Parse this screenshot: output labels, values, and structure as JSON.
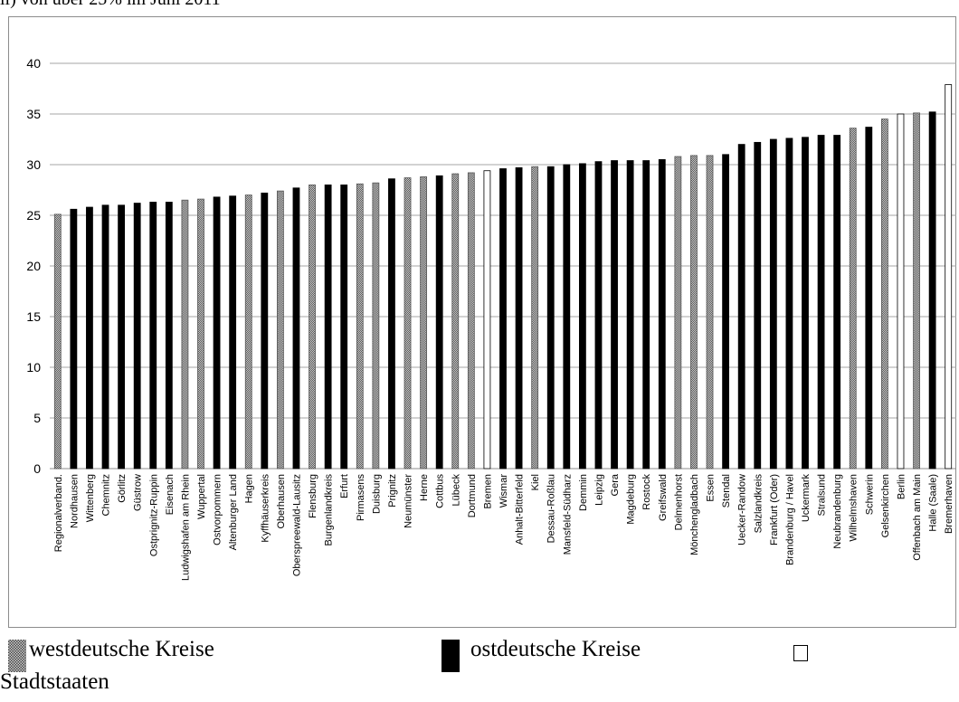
{
  "caption": "ll) von über 25% im Juni 2011",
  "legend": [
    {
      "key": "west",
      "label": "westdeutsche Kreise"
    },
    {
      "key": "ost",
      "label": "ostdeutsche Kreise"
    },
    {
      "key": "stadt",
      "label": "Stadtstaaten"
    }
  ],
  "colors": {
    "west": "#8a8a8a",
    "ost": "#000000",
    "stadt": "#ffffff",
    "grid": "#a6a6a6",
    "frame": "#8c8c8c"
  },
  "chart_data": {
    "type": "bar",
    "ylim": [
      0,
      40
    ],
    "yticks": [
      0,
      5,
      10,
      15,
      20,
      25,
      30,
      35,
      40
    ],
    "grid": true,
    "categories": [
      "Regionalverband.",
      "Nordhausen",
      "Wittenberg",
      "Chemnitz",
      "Görlitz",
      "Güstrow",
      "Ostprignitz-Ruppin",
      "Eisenach",
      "Ludwigshafen am Rhein",
      "Wuppertal",
      "Ostvorpommern",
      "Altenburger Land",
      "Hagen",
      "Kyffhäuserkreis",
      "Oberhausen",
      "Oberspreewald-Lausitz",
      "Flensburg",
      "Burgenlandkreis",
      "Erfurt",
      "Pirmasens",
      "Duisburg",
      "Prignitz",
      "Neumünster",
      "Herne",
      "Cottbus",
      "Lübeck",
      "Dortmund",
      "Bremen",
      "Wismar",
      "Anhalt-Bitterfeld",
      "Kiel",
      "Dessau-Roßlau",
      "Mansfeld-Südharz",
      "Demmin",
      "Leipzig",
      "Gera",
      "Magdeburg",
      "Rostock",
      "Greifswald",
      "Delmenhorst",
      "Mönchengladbach",
      "Essen",
      "Stendal",
      "Uecker-Randow",
      "Salzlandkreis",
      "Frankfurt (Oder)",
      "Brandenburg / Havel",
      "Uckermark",
      "Stralsund",
      "Neubrandenburg",
      "Wilhelmshaven",
      "Schwerin",
      "Gelsenkirchen",
      "Berlin",
      "Offenbach am Main",
      "Halle (Saale)",
      "Bremerhaven"
    ],
    "values": [
      25.1,
      25.6,
      25.8,
      26.0,
      26.0,
      26.2,
      26.3,
      26.3,
      26.5,
      26.6,
      26.8,
      26.9,
      27.0,
      27.2,
      27.4,
      27.7,
      28.0,
      28.0,
      28.0,
      28.1,
      28.2,
      28.6,
      28.7,
      28.8,
      28.9,
      29.1,
      29.2,
      29.4,
      29.6,
      29.7,
      29.8,
      29.8,
      30.0,
      30.1,
      30.3,
      30.4,
      30.4,
      30.4,
      30.5,
      30.8,
      30.9,
      30.9,
      31.0,
      32.0,
      32.2,
      32.5,
      32.6,
      32.7,
      32.9,
      32.9,
      33.6,
      33.7,
      34.5,
      35.0,
      35.1,
      35.2,
      37.9
    ],
    "groups": [
      "west",
      "ost",
      "ost",
      "ost",
      "ost",
      "ost",
      "ost",
      "ost",
      "west",
      "west",
      "ost",
      "ost",
      "west",
      "ost",
      "west",
      "ost",
      "west",
      "ost",
      "ost",
      "west",
      "west",
      "ost",
      "west",
      "west",
      "ost",
      "west",
      "west",
      "stadt",
      "ost",
      "ost",
      "west",
      "ost",
      "ost",
      "ost",
      "ost",
      "ost",
      "ost",
      "ost",
      "ost",
      "west",
      "west",
      "west",
      "ost",
      "ost",
      "ost",
      "ost",
      "ost",
      "ost",
      "ost",
      "ost",
      "west",
      "ost",
      "west",
      "stadt",
      "west",
      "ost",
      "stadt"
    ]
  }
}
